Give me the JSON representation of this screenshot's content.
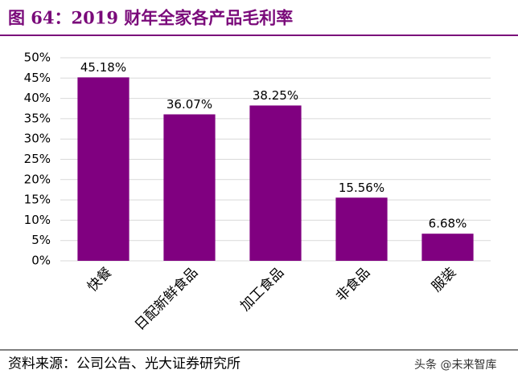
{
  "chart_data": {
    "type": "bar",
    "title": "图 64：2019 财年全家各产品毛利率",
    "categories": [
      "快餐",
      "日配新鲜食品",
      "加工食品",
      "非食品",
      "服装"
    ],
    "values": [
      45.18,
      36.07,
      38.25,
      15.56,
      6.68
    ],
    "value_labels": [
      "45.18%",
      "36.07%",
      "38.25%",
      "15.56%",
      "6.68%"
    ],
    "color": "#800080",
    "ylim": [
      0,
      50
    ],
    "yticks": [
      {
        "value": 0,
        "label": "0%"
      },
      {
        "value": 5,
        "label": "5%"
      },
      {
        "value": 10,
        "label": "10%"
      },
      {
        "value": 15,
        "label": "15%"
      },
      {
        "value": 20,
        "label": "20%"
      },
      {
        "value": 25,
        "label": "25%"
      },
      {
        "value": 30,
        "label": "30%"
      },
      {
        "value": 35,
        "label": "35%"
      },
      {
        "value": 40,
        "label": "40%"
      },
      {
        "value": 45,
        "label": "45%"
      },
      {
        "value": 50,
        "label": "50%"
      }
    ],
    "grid": true,
    "source": "资料来源：公司公告、光大证券研究所",
    "watermark": "头条 @未来智库"
  }
}
